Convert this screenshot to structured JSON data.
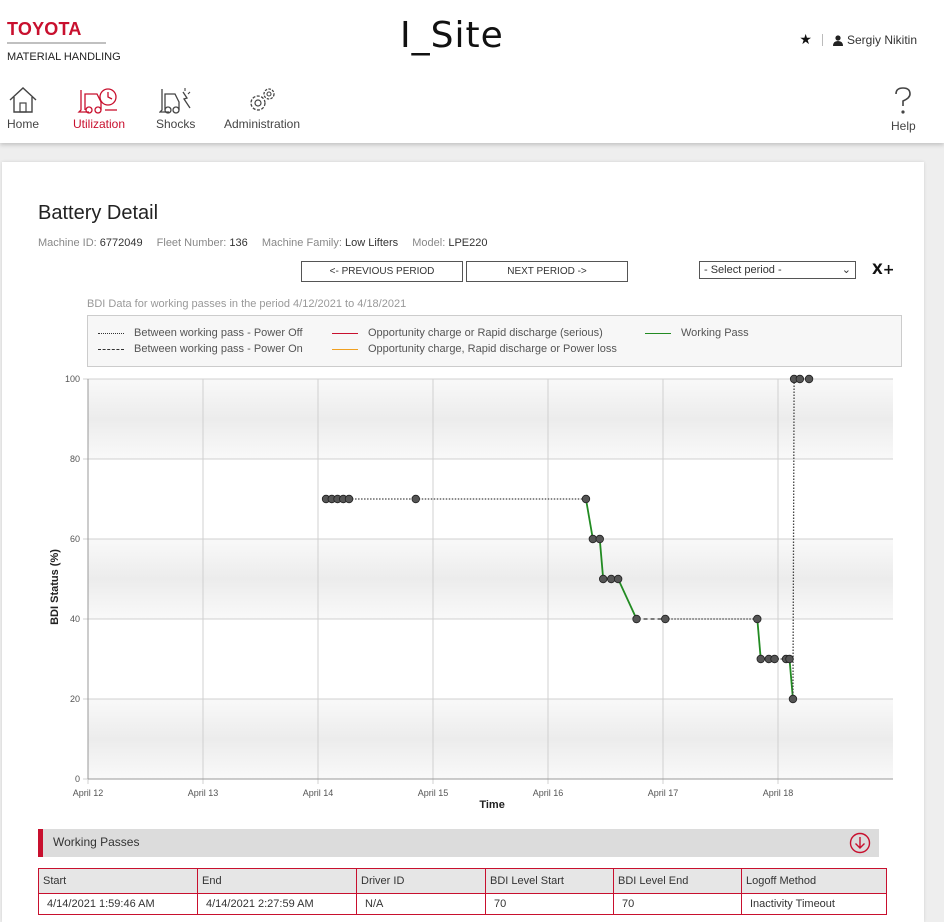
{
  "brand": {
    "name": "TOYOTA",
    "subtitle": "MATERIAL HANDLING"
  },
  "app_title": "I_Site",
  "user": {
    "favorite_icon": "star-icon",
    "name": "Sergiy Nikitin"
  },
  "nav": {
    "home": "Home",
    "utilization": "Utilization",
    "shocks": "Shocks",
    "administration": "Administration",
    "help": "Help",
    "active": "Utilization",
    "accent_color": "#c8102e"
  },
  "page": {
    "title": "Battery Detail",
    "meta": {
      "machine_id_label": "Machine ID:",
      "machine_id": "6772049",
      "fleet_number_label": "Fleet Number:",
      "fleet_number": "136",
      "machine_family_label": "Machine Family:",
      "machine_family": "Low Lifters",
      "model_label": "Model:",
      "model": "LPE220"
    },
    "prev_period": "<- PREVIOUS PERIOD",
    "next_period": "NEXT PERIOD ->",
    "period_select": "- Select period -",
    "clear_label": "X+"
  },
  "legend": [
    {
      "label": "Between working pass - Power Off",
      "color": "#333333",
      "style": "dotted"
    },
    {
      "label": "Between working pass - Power On",
      "color": "#333333",
      "style": "dashed"
    },
    {
      "label": "Opportunity charge or Rapid discharge (serious)",
      "color": "#c8102e",
      "style": "solid"
    },
    {
      "label": "Opportunity charge, Rapid discharge or Power loss",
      "color": "#f0a020",
      "style": "solid"
    },
    {
      "label": "Working Pass",
      "color": "#228B22",
      "style": "solid"
    }
  ],
  "chart_data": {
    "type": "line",
    "caption": "BDI Data for working passes in the period 4/12/2021 to 4/18/2021",
    "xlabel": "Time",
    "ylabel": "BDI Status (%)",
    "x_ticks": [
      "April 12",
      "April 13",
      "April 14",
      "April 15",
      "April 16",
      "April 17",
      "April 18"
    ],
    "xlim": [
      0,
      7
    ],
    "ylim": [
      0,
      100
    ],
    "y_ticks": [
      0,
      20,
      40,
      60,
      80,
      100
    ],
    "grid": true,
    "points": [
      [
        2.07,
        70
      ],
      [
        2.12,
        70
      ],
      [
        2.17,
        70
      ],
      [
        2.22,
        70
      ],
      [
        2.27,
        70
      ],
      [
        2.85,
        70
      ],
      [
        4.33,
        70
      ],
      [
        4.39,
        60
      ],
      [
        4.45,
        60
      ],
      [
        4.48,
        50
      ],
      [
        4.55,
        50
      ],
      [
        4.61,
        50
      ],
      [
        4.77,
        40
      ],
      [
        5.02,
        40
      ],
      [
        5.82,
        40
      ],
      [
        5.85,
        30
      ],
      [
        5.92,
        30
      ],
      [
        5.97,
        30
      ],
      [
        6.07,
        30
      ],
      [
        6.1,
        30
      ],
      [
        6.13,
        20
      ],
      [
        6.14,
        100
      ],
      [
        6.19,
        100
      ],
      [
        6.27,
        100
      ]
    ],
    "segments": [
      {
        "from": 0,
        "to": 1,
        "kind": "power_off"
      },
      {
        "from": 1,
        "to": 2,
        "kind": "power_off"
      },
      {
        "from": 2,
        "to": 3,
        "kind": "power_off"
      },
      {
        "from": 3,
        "to": 4,
        "kind": "power_off"
      },
      {
        "from": 4,
        "to": 5,
        "kind": "power_off"
      },
      {
        "from": 5,
        "to": 6,
        "kind": "power_off"
      },
      {
        "from": 6,
        "to": 7,
        "kind": "working"
      },
      {
        "from": 7,
        "to": 8,
        "kind": "working"
      },
      {
        "from": 8,
        "to": 9,
        "kind": "working"
      },
      {
        "from": 9,
        "to": 10,
        "kind": "working"
      },
      {
        "from": 10,
        "to": 11,
        "kind": "working"
      },
      {
        "from": 11,
        "to": 12,
        "kind": "working"
      },
      {
        "from": 12,
        "to": 13,
        "kind": "power_on"
      },
      {
        "from": 13,
        "to": 14,
        "kind": "power_off"
      },
      {
        "from": 14,
        "to": 15,
        "kind": "working"
      },
      {
        "from": 15,
        "to": 16,
        "kind": "working"
      },
      {
        "from": 16,
        "to": 17,
        "kind": "working"
      },
      {
        "from": 17,
        "to": 18,
        "kind": "power_off"
      },
      {
        "from": 18,
        "to": 19,
        "kind": "working"
      },
      {
        "from": 19,
        "to": 20,
        "kind": "working"
      },
      {
        "from": 20,
        "to": 21,
        "kind": "power_off"
      },
      {
        "from": 21,
        "to": 22,
        "kind": "power_off"
      },
      {
        "from": 22,
        "to": 23,
        "kind": "power_off"
      }
    ]
  },
  "working_passes": {
    "title": "Working Passes",
    "toggle_icon": "arrow-down-circle-icon",
    "columns": [
      "Start",
      "End",
      "Driver ID",
      "BDI Level Start",
      "BDI Level End",
      "Logoff Method"
    ],
    "rows": [
      [
        "4/14/2021 1:59:46 AM",
        "4/14/2021 2:27:59 AM",
        "N/A",
        "70",
        "70",
        "Inactivity Timeout"
      ]
    ]
  }
}
